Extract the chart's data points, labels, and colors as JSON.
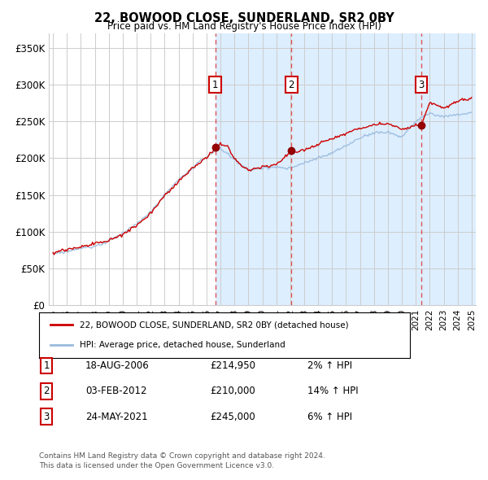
{
  "title": "22, BOWOOD CLOSE, SUNDERLAND, SR2 0BY",
  "subtitle": "Price paid vs. HM Land Registry's House Price Index (HPI)",
  "ylabel_ticks": [
    "£0",
    "£50K",
    "£100K",
    "£150K",
    "£200K",
    "£250K",
    "£300K",
    "£350K"
  ],
  "ytick_values": [
    0,
    50000,
    100000,
    150000,
    200000,
    250000,
    300000,
    350000
  ],
  "ylim": [
    0,
    370000
  ],
  "xlim_start": 1994.7,
  "xlim_end": 2025.3,
  "property_color": "#cc0000",
  "hpi_color": "#99bbdd",
  "sale_color": "#cc0000",
  "vline_color": "#dd4444",
  "sales": [
    {
      "date_label": "18-AUG-2006",
      "year": 2006.625,
      "price": 214950,
      "label": "1",
      "pct": "2%"
    },
    {
      "date_label": "03-FEB-2012",
      "year": 2012.085,
      "price": 210000,
      "label": "2",
      "pct": "14%"
    },
    {
      "date_label": "24-MAY-2021",
      "year": 2021.39,
      "price": 245000,
      "label": "3",
      "pct": "6%"
    }
  ],
  "legend_property": "22, BOWOOD CLOSE, SUNDERLAND, SR2 0BY (detached house)",
  "legend_hpi": "HPI: Average price, detached house, Sunderland",
  "footer1": "Contains HM Land Registry data © Crown copyright and database right 2024.",
  "footer2": "This data is licensed under the Open Government Licence v3.0.",
  "shaded_color": "#ddeeff",
  "grid_color": "#cccccc",
  "background_color": "#ffffff"
}
